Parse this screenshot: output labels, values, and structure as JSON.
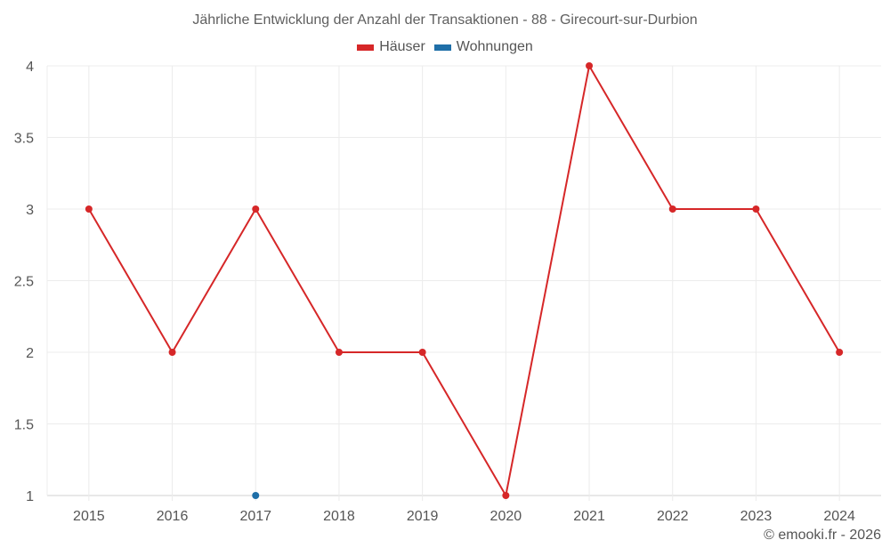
{
  "title": "Jährliche Entwicklung der Anzahl der Transaktionen - 88 - Girecourt-sur-Durbion",
  "legend": [
    {
      "label": "Häuser",
      "color": "#d62728"
    },
    {
      "label": "Wohnungen",
      "color": "#1f6fa8"
    }
  ],
  "credit": "© emooki.fr - 2026",
  "chart_data": {
    "type": "line",
    "title": "Jährliche Entwicklung der Anzahl der Transaktionen - 88 - Girecourt-sur-Durbion",
    "xlabel": "",
    "ylabel": "",
    "categories": [
      "2015",
      "2016",
      "2017",
      "2018",
      "2019",
      "2020",
      "2021",
      "2022",
      "2023",
      "2024"
    ],
    "series": [
      {
        "name": "Häuser",
        "color": "#d62728",
        "values": [
          3,
          2,
          3,
          2,
          2,
          1,
          4,
          3,
          3,
          2
        ]
      },
      {
        "name": "Wohnungen",
        "color": "#1f6fa8",
        "values": [
          null,
          null,
          1,
          null,
          null,
          null,
          null,
          null,
          null,
          null
        ]
      }
    ],
    "ylim": [
      1,
      4
    ],
    "yticks": [
      "1",
      "1.5",
      "2",
      "2.5",
      "3",
      "3.5",
      "4"
    ],
    "grid": true,
    "legend_position": "top"
  }
}
